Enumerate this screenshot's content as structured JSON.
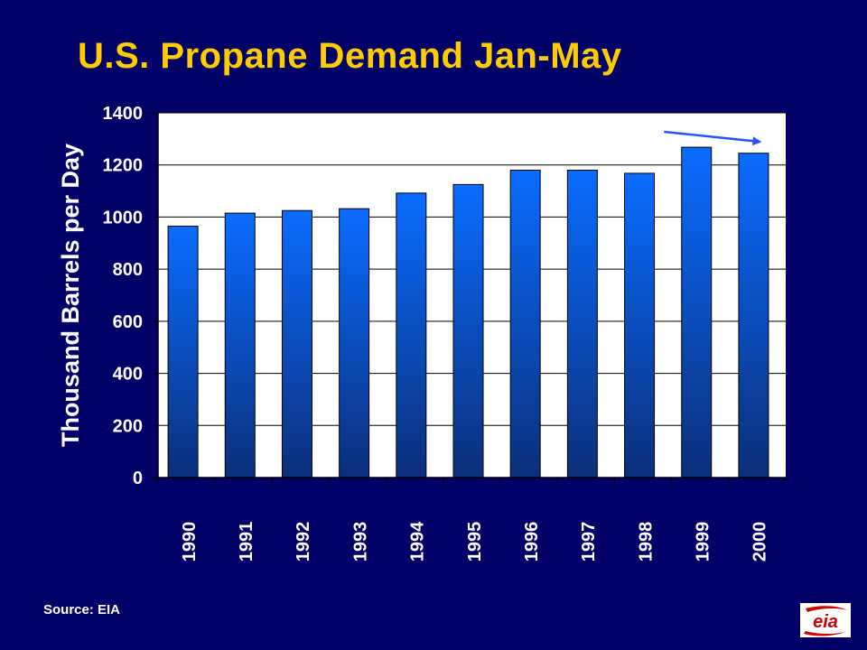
{
  "title": "U.S. Propane Demand Jan-May",
  "source": "Source: EIA",
  "logo": {
    "text": "eia",
    "icon": "eia-logo",
    "color": "#cc0000"
  },
  "colors": {
    "background": "#000066",
    "title": "#ffcc00",
    "bar_top": "#0a6cff",
    "bar_bottom": "#0b2f7a",
    "arrow": "#2255ff",
    "plot_bg": "#ffffff"
  },
  "chart_data": {
    "type": "bar",
    "categories": [
      "1990",
      "1991",
      "1992",
      "1993",
      "1994",
      "1995",
      "1996",
      "1997",
      "1998",
      "1999",
      "2000"
    ],
    "values": [
      965,
      1015,
      1025,
      1032,
      1092,
      1125,
      1180,
      1180,
      1168,
      1268,
      1245
    ],
    "ylabel": "Thousand Barrels per Day",
    "ylim": [
      0,
      1400
    ],
    "yticks": [
      0,
      200,
      400,
      600,
      800,
      1000,
      1200,
      1400
    ],
    "grid": true,
    "legend": "none",
    "annotation": {
      "type": "arrow",
      "from": "1999",
      "to": "2000",
      "meaning": "decline"
    }
  }
}
